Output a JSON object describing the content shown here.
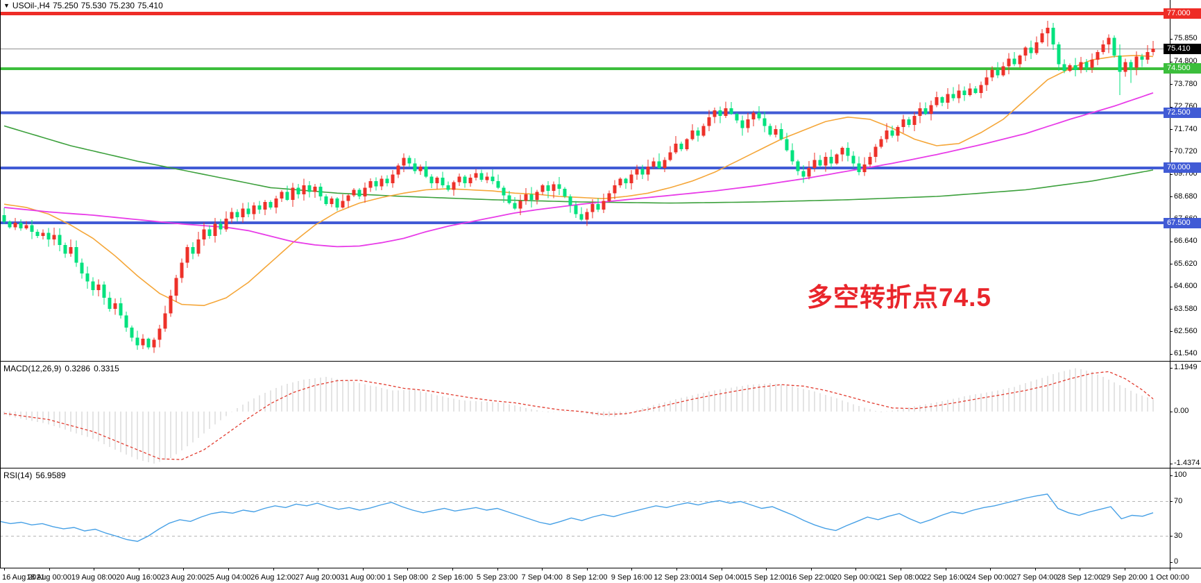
{
  "header": {
    "marker": "▼",
    "symbol": "USOil-,H4",
    "open": "75.250",
    "high": "75.530",
    "low": "75.230",
    "close": "75.410"
  },
  "annotation": {
    "text": "多空转折点74.5",
    "color": "#e9252b"
  },
  "macd_panel": {
    "name": "MACD(12,26,9)",
    "value_main": "0.3286",
    "value_signal": "0.3315"
  },
  "rsi_panel": {
    "name": "RSI(14)",
    "value": "56.9589"
  },
  "colors": {
    "bull_candle": "#ed3129",
    "bear_candle": "#00e27e",
    "ma_green": "#3ca03c",
    "ma_orange": "#f5a638",
    "ma_magenta": "#e83ce8",
    "level_red": "#ee2c26",
    "level_green": "#3cbe3c",
    "level_blue": "#415bd5",
    "bid_line": "#909090",
    "badge_black": "#000000",
    "macd_histogram": "#c9c9c9",
    "macd_signal": "#e23b2e",
    "rsi_line": "#46a0e6",
    "rsi_grid": "#b5b5b5",
    "annotation_red": "#e9252b"
  },
  "price_axis": {
    "ticks": [
      "76.870",
      "75.850",
      "74.800",
      "73.780",
      "72.760",
      "71.740",
      "70.720",
      "69.700",
      "68.680",
      "67.660",
      "66.640",
      "65.620",
      "64.600",
      "63.580",
      "62.560",
      "61.540"
    ],
    "badges": [
      {
        "text": "77.000",
        "price": 77.0,
        "bg": "#ee2c26"
      },
      {
        "text": "75.410",
        "price": 75.41,
        "bg": "#000000"
      },
      {
        "text": "74.500",
        "price": 74.5,
        "bg": "#3cbe3c"
      },
      {
        "text": "72.500",
        "price": 72.5,
        "bg": "#415bd5"
      },
      {
        "text": "70.000",
        "price": 70.0,
        "bg": "#415bd5"
      },
      {
        "text": "67.500",
        "price": 67.5,
        "bg": "#415bd5"
      }
    ]
  },
  "macd_axis": {
    "ticks": [
      {
        "label": "1.1949",
        "value": 1.1949
      },
      {
        "label": "0.00",
        "value": 0.0
      },
      {
        "label": "-1.4374",
        "value": -1.4374
      }
    ]
  },
  "rsi_axis": {
    "ticks": [
      {
        "label": "100",
        "value": 100
      },
      {
        "label": "70",
        "value": 70
      },
      {
        "label": "30",
        "value": 30
      },
      {
        "label": "0",
        "value": 0
      }
    ]
  },
  "time_axis": {
    "labels": [
      "16 Aug 2021",
      "18 Aug 00:00",
      "19 Aug 08:00",
      "20 Aug 16:00",
      "23 Aug 20:00",
      "25 Aug 04:00",
      "26 Aug 12:00",
      "27 Aug 20:00",
      "31 Aug 00:00",
      "1 Sep 08:00",
      "2 Sep 16:00",
      "5 Sep 23:00",
      "7 Sep 04:00",
      "8 Sep 12:00",
      "9 Sep 16:00",
      "12 Sep 23:00",
      "14 Sep 04:00",
      "15 Sep 12:00",
      "16 Sep 22:00",
      "20 Sep 00:00",
      "21 Sep 08:00",
      "22 Sep 16:00",
      "24 Sep 00:00",
      "27 Sep 04:00",
      "28 Sep 12:00",
      "29 Sep 20:00",
      "1 Oct 00:00"
    ]
  },
  "chart_data": {
    "type": "candlestick",
    "symbol": "USOil",
    "timeframe": "H4",
    "main": {
      "y_axis": {
        "min": 61.3,
        "max": 77.3
      },
      "levels": [
        {
          "price": 77.0,
          "color": "#ee2c26",
          "thickness": 5
        },
        {
          "price": 74.5,
          "color": "#3cbe3c",
          "thickness": 4
        },
        {
          "price": 72.5,
          "color": "#415bd5",
          "thickness": 4
        },
        {
          "price": 70.0,
          "color": "#415bd5",
          "thickness": 4
        },
        {
          "price": 67.5,
          "color": "#415bd5",
          "thickness": 4
        }
      ],
      "bid_price": 75.41,
      "candles": {
        "first_open": 67.85,
        "closes": [
          67.55,
          67.3,
          67.5,
          67.25,
          67.4,
          67.1,
          66.9,
          67.05,
          66.75,
          66.95,
          66.5,
          66.1,
          66.4,
          65.7,
          65.2,
          64.85,
          64.45,
          64.7,
          64.1,
          63.6,
          63.85,
          63.3,
          62.75,
          62.3,
          61.95,
          62.25,
          61.85,
          62.2,
          62.7,
          63.4,
          64.2,
          65.0,
          65.7,
          66.4,
          66.1,
          66.75,
          67.2,
          66.9,
          67.45,
          67.2,
          67.7,
          68.0,
          67.75,
          68.15,
          67.9,
          68.3,
          68.1,
          68.45,
          68.2,
          68.6,
          68.9,
          68.55,
          69.1,
          68.8,
          69.2,
          68.9,
          69.15,
          68.7,
          68.35,
          68.6,
          68.2,
          68.5,
          68.75,
          69.0,
          68.7,
          69.1,
          69.4,
          69.15,
          69.5,
          69.3,
          69.7,
          70.1,
          70.45,
          70.2,
          69.85,
          70.05,
          69.6,
          69.3,
          69.55,
          69.2,
          69.0,
          69.35,
          69.6,
          69.3,
          69.55,
          69.75,
          69.45,
          69.6,
          69.4,
          69.1,
          68.75,
          68.4,
          68.15,
          68.5,
          68.8,
          68.55,
          68.9,
          69.2,
          68.95,
          69.25,
          69.05,
          68.7,
          68.3,
          67.9,
          67.65,
          68.0,
          68.35,
          68.1,
          68.5,
          68.85,
          69.2,
          69.5,
          69.3,
          69.7,
          69.95,
          69.7,
          70.05,
          70.3,
          70.0,
          70.35,
          70.7,
          71.1,
          70.85,
          71.3,
          71.7,
          71.45,
          71.9,
          72.3,
          72.6,
          72.35,
          72.7,
          72.45,
          72.15,
          71.8,
          72.2,
          72.5,
          72.25,
          71.9,
          71.5,
          71.75,
          71.3,
          70.8,
          70.3,
          69.85,
          69.6,
          70.0,
          70.35,
          70.1,
          70.5,
          70.2,
          70.6,
          70.9,
          70.55,
          70.2,
          69.8,
          70.15,
          70.5,
          70.95,
          71.3,
          71.7,
          71.45,
          71.85,
          72.2,
          71.95,
          72.35,
          72.7,
          72.45,
          72.85,
          73.2,
          72.95,
          73.35,
          73.15,
          73.5,
          73.3,
          73.6,
          73.4,
          73.75,
          74.1,
          74.45,
          74.2,
          74.6,
          74.95,
          74.7,
          75.1,
          75.45,
          75.2,
          75.7,
          76.1,
          76.35,
          75.6,
          74.7,
          74.4,
          74.65,
          74.45,
          74.8,
          74.55,
          74.9,
          75.25,
          75.6,
          75.9,
          75.1,
          74.35,
          74.8,
          74.55,
          75.05,
          74.9,
          75.25,
          75.41
        ],
        "wick_overrides": {
          "24": [
            62.6,
            61.74
          ],
          "25": [
            62.45,
            61.78
          ],
          "26": [
            62.3,
            61.75
          ],
          "72": [
            70.65,
            69.8
          ],
          "188": [
            76.67,
            75.5
          ],
          "199": [
            76.05,
            75.2
          ],
          "201": [
            75.6,
            73.3
          ],
          "203": [
            74.9,
            73.85
          ]
        }
      },
      "ma_green_keypoints": [
        [
          0,
          71.9
        ],
        [
          12,
          71.0
        ],
        [
          24,
          70.3
        ],
        [
          36,
          69.7
        ],
        [
          48,
          69.1
        ],
        [
          60,
          68.85
        ],
        [
          72,
          68.7
        ],
        [
          88,
          68.55
        ],
        [
          104,
          68.45
        ],
        [
          120,
          68.4
        ],
        [
          136,
          68.45
        ],
        [
          152,
          68.55
        ],
        [
          168,
          68.7
        ],
        [
          184,
          69.0
        ],
        [
          196,
          69.4
        ],
        [
          207,
          69.9
        ]
      ],
      "ma_orange_keypoints": [
        [
          0,
          68.35
        ],
        [
          4,
          68.2
        ],
        [
          8,
          67.9
        ],
        [
          12,
          67.4
        ],
        [
          16,
          66.8
        ],
        [
          20,
          66.0
        ],
        [
          24,
          65.1
        ],
        [
          28,
          64.3
        ],
        [
          32,
          63.8
        ],
        [
          36,
          63.75
        ],
        [
          40,
          64.1
        ],
        [
          44,
          64.8
        ],
        [
          48,
          65.7
        ],
        [
          52,
          66.6
        ],
        [
          56,
          67.4
        ],
        [
          60,
          68.0
        ],
        [
          64,
          68.4
        ],
        [
          68,
          68.65
        ],
        [
          72,
          68.85
        ],
        [
          76,
          69.0
        ],
        [
          80,
          69.05
        ],
        [
          84,
          69.0
        ],
        [
          88,
          68.95
        ],
        [
          92,
          68.85
        ],
        [
          96,
          68.8
        ],
        [
          100,
          68.7
        ],
        [
          104,
          68.65
        ],
        [
          108,
          68.6
        ],
        [
          112,
          68.7
        ],
        [
          116,
          68.85
        ],
        [
          120,
          69.1
        ],
        [
          124,
          69.4
        ],
        [
          128,
          69.8
        ],
        [
          132,
          70.3
        ],
        [
          136,
          70.8
        ],
        [
          140,
          71.3
        ],
        [
          144,
          71.7
        ],
        [
          148,
          72.1
        ],
        [
          152,
          72.3
        ],
        [
          156,
          72.2
        ],
        [
          160,
          71.8
        ],
        [
          164,
          71.3
        ],
        [
          168,
          71.0
        ],
        [
          172,
          71.1
        ],
        [
          176,
          71.6
        ],
        [
          180,
          72.2
        ],
        [
          184,
          73.1
        ],
        [
          188,
          74.0
        ],
        [
          192,
          74.5
        ],
        [
          196,
          74.9
        ],
        [
          200,
          75.05
        ],
        [
          204,
          75.1
        ],
        [
          207,
          75.05
        ]
      ],
      "ma_magenta_keypoints": [
        [
          0,
          68.2
        ],
        [
          8,
          68.0
        ],
        [
          16,
          67.85
        ],
        [
          24,
          67.65
        ],
        [
          32,
          67.45
        ],
        [
          40,
          67.3
        ],
        [
          44,
          67.15
        ],
        [
          48,
          66.9
        ],
        [
          52,
          66.65
        ],
        [
          56,
          66.5
        ],
        [
          60,
          66.42
        ],
        [
          64,
          66.45
        ],
        [
          68,
          66.6
        ],
        [
          72,
          66.8
        ],
        [
          76,
          67.1
        ],
        [
          80,
          67.35
        ],
        [
          84,
          67.55
        ],
        [
          88,
          67.75
        ],
        [
          92,
          67.95
        ],
        [
          96,
          68.1
        ],
        [
          104,
          68.35
        ],
        [
          112,
          68.55
        ],
        [
          120,
          68.75
        ],
        [
          128,
          68.95
        ],
        [
          136,
          69.2
        ],
        [
          144,
          69.5
        ],
        [
          152,
          69.85
        ],
        [
          160,
          70.2
        ],
        [
          168,
          70.6
        ],
        [
          176,
          71.05
        ],
        [
          184,
          71.55
        ],
        [
          192,
          72.2
        ],
        [
          200,
          72.8
        ],
        [
          207,
          73.4
        ]
      ]
    },
    "macd": {
      "type": "histogram+line",
      "y_range": [
        -1.4374,
        1.1949
      ],
      "macd_keypoints": [
        [
          0,
          -0.1
        ],
        [
          8,
          -0.35
        ],
        [
          16,
          -0.75
        ],
        [
          20,
          -1.05
        ],
        [
          24,
          -1.32
        ],
        [
          27,
          -1.43
        ],
        [
          30,
          -1.28
        ],
        [
          34,
          -0.85
        ],
        [
          38,
          -0.35
        ],
        [
          42,
          0.1
        ],
        [
          46,
          0.45
        ],
        [
          50,
          0.72
        ],
        [
          54,
          0.88
        ],
        [
          58,
          0.95
        ],
        [
          62,
          0.85
        ],
        [
          66,
          0.72
        ],
        [
          70,
          0.58
        ],
        [
          74,
          0.6
        ],
        [
          78,
          0.45
        ],
        [
          82,
          0.32
        ],
        [
          86,
          0.28
        ],
        [
          90,
          0.24
        ],
        [
          94,
          0.1
        ],
        [
          98,
          -0.02
        ],
        [
          102,
          0.03
        ],
        [
          106,
          -0.1
        ],
        [
          110,
          -0.14
        ],
        [
          114,
          0.05
        ],
        [
          118,
          0.22
        ],
        [
          122,
          0.38
        ],
        [
          126,
          0.52
        ],
        [
          130,
          0.64
        ],
        [
          134,
          0.73
        ],
        [
          138,
          0.78
        ],
        [
          142,
          0.7
        ],
        [
          146,
          0.55
        ],
        [
          150,
          0.36
        ],
        [
          154,
          0.15
        ],
        [
          158,
          -0.02
        ],
        [
          162,
          0.08
        ],
        [
          166,
          0.2
        ],
        [
          170,
          0.32
        ],
        [
          174,
          0.45
        ],
        [
          178,
          0.55
        ],
        [
          182,
          0.68
        ],
        [
          186,
          0.88
        ],
        [
          190,
          1.08
        ],
        [
          193,
          1.19
        ],
        [
          196,
          1.1
        ],
        [
          200,
          0.8
        ],
        [
          204,
          0.5
        ],
        [
          207,
          0.33
        ]
      ],
      "signal_keypoints": [
        [
          0,
          -0.05
        ],
        [
          8,
          -0.22
        ],
        [
          16,
          -0.55
        ],
        [
          24,
          -1.05
        ],
        [
          28,
          -1.3
        ],
        [
          32,
          -1.32
        ],
        [
          36,
          -1.05
        ],
        [
          40,
          -0.62
        ],
        [
          44,
          -0.18
        ],
        [
          48,
          0.22
        ],
        [
          52,
          0.52
        ],
        [
          56,
          0.72
        ],
        [
          60,
          0.85
        ],
        [
          64,
          0.86
        ],
        [
          68,
          0.76
        ],
        [
          72,
          0.64
        ],
        [
          76,
          0.58
        ],
        [
          80,
          0.48
        ],
        [
          84,
          0.38
        ],
        [
          88,
          0.3
        ],
        [
          92,
          0.24
        ],
        [
          96,
          0.14
        ],
        [
          100,
          0.05
        ],
        [
          104,
          0.0
        ],
        [
          108,
          -0.08
        ],
        [
          112,
          -0.06
        ],
        [
          116,
          0.06
        ],
        [
          120,
          0.2
        ],
        [
          124,
          0.34
        ],
        [
          128,
          0.46
        ],
        [
          132,
          0.57
        ],
        [
          136,
          0.67
        ],
        [
          140,
          0.74
        ],
        [
          144,
          0.7
        ],
        [
          148,
          0.58
        ],
        [
          152,
          0.42
        ],
        [
          156,
          0.25
        ],
        [
          160,
          0.1
        ],
        [
          164,
          0.08
        ],
        [
          168,
          0.16
        ],
        [
          172,
          0.26
        ],
        [
          176,
          0.37
        ],
        [
          180,
          0.47
        ],
        [
          184,
          0.58
        ],
        [
          188,
          0.72
        ],
        [
          192,
          0.9
        ],
        [
          196,
          1.05
        ],
        [
          199,
          1.1
        ],
        [
          202,
          0.9
        ],
        [
          205,
          0.6
        ],
        [
          207,
          0.35
        ]
      ]
    },
    "rsi": {
      "type": "line",
      "y_range": [
        0,
        100
      ],
      "gridlines": [
        70,
        30
      ],
      "values": [
        47,
        44.5,
        46,
        43,
        44.5,
        41,
        38.5,
        40,
        36,
        38,
        33.5,
        30,
        26,
        24,
        30,
        38,
        45,
        49,
        47,
        52,
        56,
        58,
        56.5,
        60,
        58,
        62,
        65,
        63,
        67,
        65,
        68,
        64,
        61,
        63,
        60,
        62.5,
        66,
        69,
        64,
        60,
        57,
        59.5,
        62,
        59,
        61,
        63,
        60,
        62,
        58,
        54,
        50,
        46,
        43.5,
        47,
        51,
        48,
        52,
        55,
        52.5,
        56,
        59,
        62,
        65,
        63,
        66,
        68.5,
        66,
        69,
        71,
        68,
        70,
        66,
        62,
        64,
        59,
        54,
        48,
        43,
        39,
        36.5,
        42,
        47,
        52,
        49,
        53,
        56,
        50,
        45,
        49,
        54,
        58,
        56,
        60,
        63,
        65,
        68,
        71,
        74,
        76.5,
        78.5,
        62,
        57,
        54,
        58,
        61,
        64,
        50,
        54,
        53,
        56.96
      ]
    }
  }
}
